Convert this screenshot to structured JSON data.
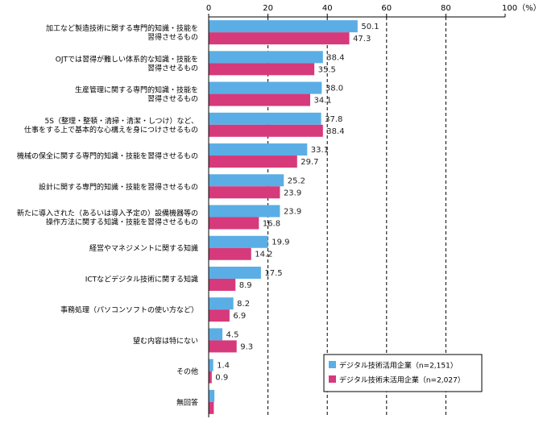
{
  "chart_data": {
    "type": "bar",
    "orientation": "horizontal",
    "unit_label": "100（%）",
    "xlim": [
      0,
      100
    ],
    "xticks": [
      "0",
      "20",
      "40",
      "60",
      "80"
    ],
    "grid": "dashed vertical lines at 20, 40, 60, 80",
    "legend_position": "bottom-right",
    "categories": [
      [
        "加工など製造技術に関する専門的知識・技能を",
        "習得させるもの"
      ],
      [
        "OJTでは習得が難しい体系的な知識・技能を",
        "習得させるもの"
      ],
      [
        "生産管理に関する専門的知識・技能を",
        "習得させるもの"
      ],
      [
        "5S（整理・整頓・清掃・清潔・しつけ）など、",
        "仕事をする上で基本的な心構えを身につけさせるもの"
      ],
      [
        "機械の保全に関する専門的知識・技能を習得させるもの"
      ],
      [
        "設計に関する専門的知識・技能を習得させるもの"
      ],
      [
        "新たに導入された（あるいは導入予定の）設備機器等の",
        "操作方法に関する知識・技能を習得させるもの"
      ],
      [
        "経営やマネジメントに関する知識"
      ],
      [
        "ICTなどデジタル技術に関する知識"
      ],
      [
        "事務処理（パソコンソフトの使い方など）"
      ],
      [
        "望む内容は特にない"
      ],
      [
        "その他"
      ],
      [
        "無回答"
      ]
    ],
    "series": [
      {
        "name": "デジタル技術活用企業（n=2,151）",
        "color": "#5aaee5",
        "values": [
          50.1,
          38.4,
          38.0,
          37.8,
          33.1,
          25.2,
          23.9,
          19.9,
          17.5,
          8.2,
          4.5,
          1.4,
          1.8
        ],
        "labels": [
          "50.1",
          "38.4",
          "38.0",
          "37.8",
          "33.1",
          "25.2",
          "23.9",
          "19.9",
          "17.5",
          "8.2",
          "4.5",
          "1.4",
          ""
        ]
      },
      {
        "name": "デジタル技術未活用企業（n=2,027）",
        "color": "#d63a7b",
        "values": [
          47.3,
          35.5,
          34.1,
          38.4,
          29.7,
          23.9,
          16.8,
          14.2,
          8.9,
          6.9,
          9.3,
          0.9,
          1.6
        ],
        "labels": [
          "47.3",
          "35.5",
          "34.1",
          "38.4",
          "29.7",
          "23.9",
          "16.8",
          "14.2",
          "8.9",
          "6.9",
          "9.3",
          "0.9",
          ""
        ]
      }
    ]
  }
}
